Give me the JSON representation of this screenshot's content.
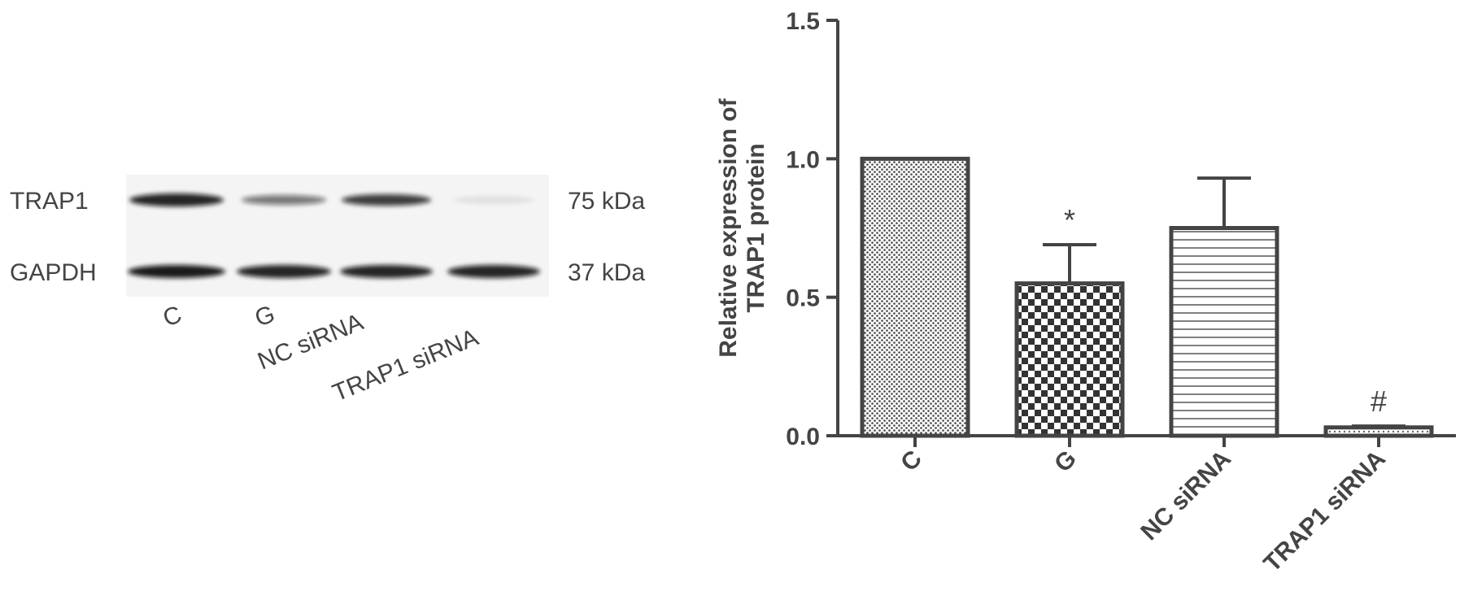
{
  "blot": {
    "rows": [
      {
        "label": "TRAP1",
        "size": "75 kDa"
      },
      {
        "label": "GAPDH",
        "size": "37 kDa"
      }
    ],
    "lanes": [
      "C",
      "G",
      "NC siRNA",
      "TRAP1 siRNA"
    ]
  },
  "chart_data": {
    "type": "bar",
    "ylabel": [
      "Relative expression of",
      "TRAP1 protein"
    ],
    "categories": [
      "C",
      "G",
      "NC siRNA",
      "TRAP1 siRNA"
    ],
    "values": [
      1.0,
      0.55,
      0.75,
      0.03
    ],
    "errors": [
      0,
      0.14,
      0.18,
      0.005
    ],
    "color": "#444444",
    "ylim": [
      0,
      1.5
    ],
    "yticks": [
      {
        "value": 0,
        "label": "0.0"
      },
      0.5,
      {
        "value": 1,
        "label": "1.0"
      },
      1.5
    ],
    "annotations": [
      {
        "category": "G",
        "text": "*"
      },
      {
        "category": "TRAP1 siRNA",
        "text": "#"
      }
    ]
  }
}
